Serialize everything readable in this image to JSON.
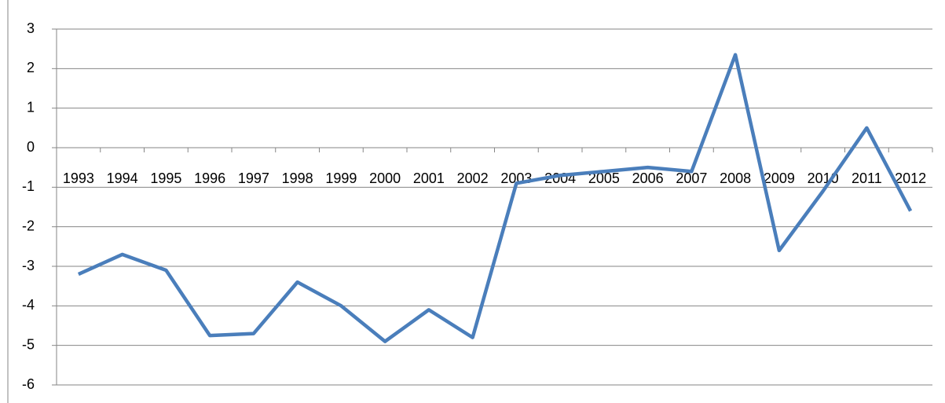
{
  "chart_data": {
    "type": "line",
    "categories": [
      "1993",
      "1994",
      "1995",
      "1996",
      "1997",
      "1998",
      "1999",
      "2000",
      "2001",
      "2002",
      "2003",
      "2004",
      "2005",
      "2006",
      "2007",
      "2008",
      "2009",
      "2010",
      "2011",
      "2012"
    ],
    "series": [
      {
        "color": "#4a7ebb",
        "values": [
          -3.2,
          -2.7,
          -3.1,
          -4.75,
          -4.7,
          -3.4,
          -4.0,
          -4.9,
          -4.1,
          -4.8,
          -0.9,
          -0.7,
          -0.6,
          -0.5,
          -0.6,
          2.35,
          -2.6,
          -1.1,
          0.5,
          -1.6
        ]
      }
    ],
    "ylim": [
      -6,
      3
    ],
    "yticks": [
      -6,
      -5,
      -4,
      -3,
      -2,
      -1,
      0,
      1,
      2,
      3
    ],
    "grid": true
  }
}
